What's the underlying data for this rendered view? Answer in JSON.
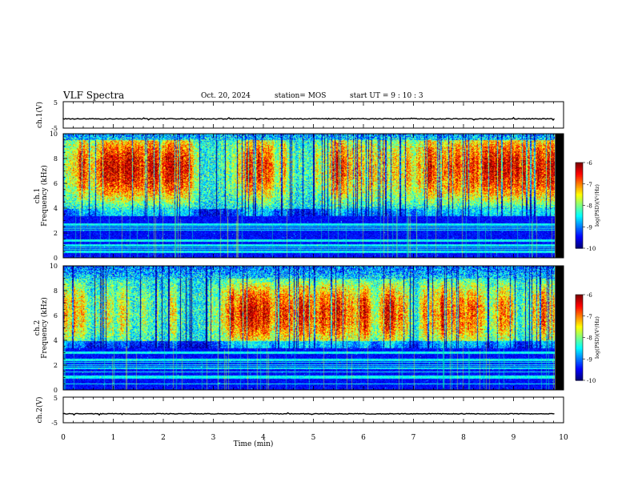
{
  "header": {
    "title": "VLF Spectra",
    "date": "Oct. 20, 2024",
    "station": "station= MOS",
    "start": "start UT =   9 : 10 : 3"
  },
  "chart_data": [
    {
      "type": "line",
      "panel": "waveform-ch1",
      "ylabel": "ch.1(V)",
      "yticks": [
        "5",
        "-5"
      ],
      "ylim": [
        -5,
        5
      ],
      "baseline_value": -1.5,
      "xlim": [
        0,
        10
      ]
    },
    {
      "type": "heatmap",
      "panel": "spectrogram-ch1",
      "ylabel_line1": "ch.1",
      "ylabel_line2": "Frequency (kHz)",
      "ylim": [
        0,
        10
      ],
      "yticks": [
        "0",
        "2",
        "4",
        "6",
        "8",
        "10"
      ],
      "xlim": [
        0,
        10
      ],
      "colorbar": {
        "label": "log(PSD)(V²/Hz)",
        "range": [
          -10,
          -6
        ],
        "ticks": [
          "-6",
          "-7",
          "-8",
          "-9",
          "-10"
        ]
      },
      "emission_band_khz": [
        4,
        9.5
      ]
    },
    {
      "type": "heatmap",
      "panel": "spectrogram-ch2",
      "ylabel_line1": "ch.2",
      "ylabel_line2": "Frequency (kHz)",
      "ylim": [
        0,
        10
      ],
      "yticks": [
        "0",
        "2",
        "4",
        "6",
        "8",
        "10"
      ],
      "xlim": [
        0,
        10
      ],
      "colorbar": {
        "label": "log(PSD)(V²/Hz)",
        "range": [
          -10,
          -6
        ],
        "ticks": [
          "-6",
          "-7",
          "-8",
          "-9",
          "-10"
        ]
      },
      "emission_band_khz": [
        4,
        9
      ]
    },
    {
      "type": "line",
      "panel": "waveform-ch2",
      "ylabel": "ch.2(V)",
      "yticks": [
        "5",
        "-5"
      ],
      "ylim": [
        -5,
        5
      ],
      "baseline_value": -1.5,
      "xlim": [
        0,
        10
      ]
    }
  ],
  "xaxis": {
    "label": "Time (min)",
    "ticks": [
      "0",
      "1",
      "2",
      "3",
      "4",
      "5",
      "6",
      "7",
      "8",
      "9",
      "10"
    ],
    "range": [
      0,
      10
    ],
    "data_end": 9.83
  }
}
